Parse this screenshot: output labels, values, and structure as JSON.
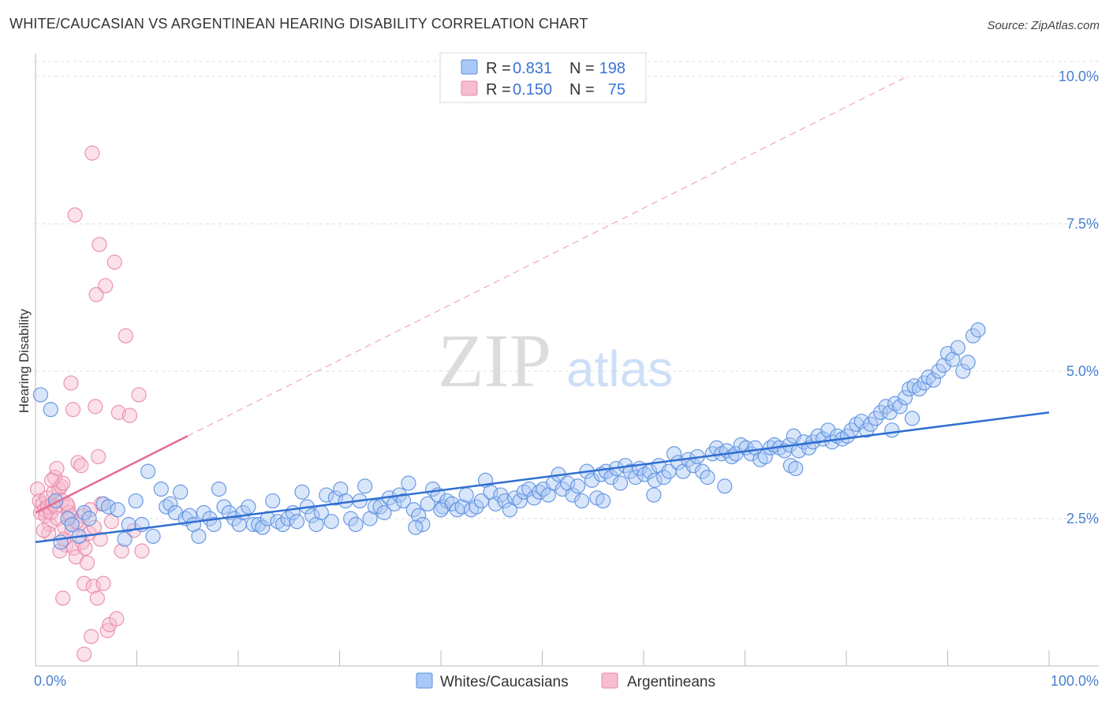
{
  "title": "WHITE/CAUCASIAN VS ARGENTINEAN HEARING DISABILITY CORRELATION CHART",
  "source": "Source: ZipAtlas.com",
  "watermark": {
    "zip": "ZIP",
    "atlas": "atlas"
  },
  "colors": {
    "blue": "#5b8fe0",
    "blue_fill": "#aac8f5",
    "blue_line": "#2f6fd0",
    "pink": "#e88aa8",
    "pink_fill": "#f6bcd0",
    "pink_line": "#e36b93",
    "tick_text": "#4a7fd0",
    "grid": "#dddddd"
  },
  "legend_top": [
    {
      "r_label": "R =",
      "r_value": "0.831",
      "n_label": "N =",
      "n_value": "198"
    },
    {
      "r_label": "R =",
      "r_value": "0.150",
      "n_label": "N =",
      "n_value": "75"
    }
  ],
  "chart_data": {
    "type": "scatter",
    "title": "WHITE/CAUCASIAN VS ARGENTINEAN HEARING DISABILITY CORRELATION CHART",
    "xlabel": "",
    "ylabel": "Hearing Disability",
    "xlim": [
      0,
      100
    ],
    "ylim": [
      0,
      10
    ],
    "x_tick_labels": [
      "0.0%",
      "100.0%"
    ],
    "y_ticks": [
      2.5,
      5.0,
      7.5,
      10.0
    ],
    "y_tick_labels": [
      "2.5%",
      "5.0%",
      "7.5%",
      "10.0%"
    ],
    "grid": true,
    "legend_position": "bottom",
    "series": [
      {
        "name": "Whites/Caucasians",
        "r": 0.831,
        "n": 198,
        "trend": {
          "x": [
            0,
            100
          ],
          "y": [
            2.1,
            4.3
          ]
        },
        "points": [
          [
            0.5,
            4.6
          ],
          [
            1.5,
            4.35
          ],
          [
            2,
            2.8
          ],
          [
            2.5,
            2.1
          ],
          [
            3.2,
            2.5
          ],
          [
            3.6,
            2.4
          ],
          [
            4.3,
            2.2
          ],
          [
            4.8,
            2.6
          ],
          [
            5.3,
            2.5
          ],
          [
            6.7,
            2.75
          ],
          [
            7.2,
            2.7
          ],
          [
            8.1,
            2.65
          ],
          [
            8.8,
            2.15
          ],
          [
            9.2,
            2.4
          ],
          [
            9.9,
            2.8
          ],
          [
            10.5,
            2.4
          ],
          [
            11.1,
            3.3
          ],
          [
            11.6,
            2.2
          ],
          [
            12.4,
            3.0
          ],
          [
            12.9,
            2.7
          ],
          [
            13.3,
            2.75
          ],
          [
            13.8,
            2.6
          ],
          [
            14.3,
            2.95
          ],
          [
            14.8,
            2.5
          ],
          [
            15.2,
            2.55
          ],
          [
            15.6,
            2.4
          ],
          [
            16.1,
            2.2
          ],
          [
            16.6,
            2.6
          ],
          [
            17.2,
            2.5
          ],
          [
            17.6,
            2.4
          ],
          [
            18.1,
            3.0
          ],
          [
            18.6,
            2.7
          ],
          [
            19.1,
            2.6
          ],
          [
            19.6,
            2.5
          ],
          [
            20.1,
            2.4
          ],
          [
            20.5,
            2.6
          ],
          [
            21.0,
            2.7
          ],
          [
            21.5,
            2.4
          ],
          [
            22.0,
            2.4
          ],
          [
            22.4,
            2.35
          ],
          [
            22.9,
            2.5
          ],
          [
            23.4,
            2.8
          ],
          [
            23.9,
            2.45
          ],
          [
            24.4,
            2.4
          ],
          [
            24.9,
            2.5
          ],
          [
            25.4,
            2.6
          ],
          [
            25.8,
            2.45
          ],
          [
            26.3,
            2.95
          ],
          [
            26.8,
            2.7
          ],
          [
            27.3,
            2.55
          ],
          [
            27.7,
            2.4
          ],
          [
            28.2,
            2.6
          ],
          [
            28.7,
            2.9
          ],
          [
            29.2,
            2.45
          ],
          [
            29.6,
            2.85
          ],
          [
            30.1,
            3.0
          ],
          [
            30.6,
            2.8
          ],
          [
            31.1,
            2.5
          ],
          [
            31.6,
            2.4
          ],
          [
            32.0,
            2.8
          ],
          [
            32.5,
            3.05
          ],
          [
            33.0,
            2.5
          ],
          [
            33.5,
            2.7
          ],
          [
            34.0,
            2.7
          ],
          [
            34.4,
            2.6
          ],
          [
            34.9,
            2.85
          ],
          [
            35.4,
            2.75
          ],
          [
            35.9,
            2.9
          ],
          [
            36.3,
            2.8
          ],
          [
            36.8,
            3.1
          ],
          [
            37.3,
            2.65
          ],
          [
            37.8,
            2.55
          ],
          [
            38.2,
            2.4
          ],
          [
            38.7,
            2.75
          ],
          [
            39.2,
            3.0
          ],
          [
            39.7,
            2.9
          ],
          [
            40.2,
            2.7
          ],
          [
            40.6,
            2.8
          ],
          [
            41.1,
            2.75
          ],
          [
            41.6,
            2.65
          ],
          [
            42.1,
            2.7
          ],
          [
            42.5,
            2.9
          ],
          [
            43.0,
            2.65
          ],
          [
            43.5,
            2.7
          ],
          [
            44.0,
            2.8
          ],
          [
            44.4,
            3.15
          ],
          [
            44.9,
            2.95
          ],
          [
            45.4,
            2.75
          ],
          [
            45.9,
            2.9
          ],
          [
            46.3,
            2.8
          ],
          [
            46.8,
            2.65
          ],
          [
            47.3,
            2.85
          ],
          [
            47.8,
            2.8
          ],
          [
            48.2,
            2.95
          ],
          [
            48.7,
            3.0
          ],
          [
            49.2,
            2.85
          ],
          [
            49.7,
            2.95
          ],
          [
            50.1,
            3.0
          ],
          [
            50.6,
            2.9
          ],
          [
            51.1,
            3.1
          ],
          [
            51.6,
            3.25
          ],
          [
            52.0,
            3.0
          ],
          [
            52.5,
            3.1
          ],
          [
            53.0,
            2.9
          ],
          [
            53.5,
            3.05
          ],
          [
            53.9,
            2.8
          ],
          [
            54.4,
            3.3
          ],
          [
            54.9,
            3.15
          ],
          [
            55.4,
            2.85
          ],
          [
            55.8,
            3.25
          ],
          [
            56.3,
            3.3
          ],
          [
            56.8,
            3.2
          ],
          [
            57.3,
            3.35
          ],
          [
            57.7,
            3.1
          ],
          [
            58.2,
            3.4
          ],
          [
            58.7,
            3.3
          ],
          [
            59.2,
            3.2
          ],
          [
            59.6,
            3.35
          ],
          [
            60.1,
            3.25
          ],
          [
            60.6,
            3.3
          ],
          [
            61.1,
            3.15
          ],
          [
            61.5,
            3.4
          ],
          [
            62.0,
            3.2
          ],
          [
            62.5,
            3.3
          ],
          [
            63.0,
            3.6
          ],
          [
            63.4,
            3.45
          ],
          [
            63.9,
            3.3
          ],
          [
            64.4,
            3.5
          ],
          [
            64.9,
            3.4
          ],
          [
            65.3,
            3.55
          ],
          [
            65.8,
            3.3
          ],
          [
            66.3,
            3.2
          ],
          [
            66.8,
            3.6
          ],
          [
            67.2,
            3.7
          ],
          [
            67.7,
            3.6
          ],
          [
            68.2,
            3.65
          ],
          [
            68.7,
            3.55
          ],
          [
            69.1,
            3.6
          ],
          [
            69.6,
            3.75
          ],
          [
            70.1,
            3.7
          ],
          [
            70.6,
            3.6
          ],
          [
            71.0,
            3.7
          ],
          [
            71.5,
            3.5
          ],
          [
            72.0,
            3.55
          ],
          [
            72.5,
            3.7
          ],
          [
            72.9,
            3.75
          ],
          [
            73.4,
            3.7
          ],
          [
            73.9,
            3.65
          ],
          [
            74.4,
            3.75
          ],
          [
            74.8,
            3.9
          ],
          [
            75.3,
            3.65
          ],
          [
            75.8,
            3.8
          ],
          [
            76.3,
            3.7
          ],
          [
            76.7,
            3.8
          ],
          [
            77.2,
            3.9
          ],
          [
            77.7,
            3.85
          ],
          [
            78.2,
            4.0
          ],
          [
            78.6,
            3.8
          ],
          [
            79.1,
            3.9
          ],
          [
            79.6,
            3.85
          ],
          [
            80.1,
            3.9
          ],
          [
            80.5,
            4.0
          ],
          [
            81.0,
            4.1
          ],
          [
            81.5,
            4.15
          ],
          [
            82.0,
            4.0
          ],
          [
            82.4,
            4.1
          ],
          [
            82.9,
            4.2
          ],
          [
            83.4,
            4.3
          ],
          [
            83.9,
            4.4
          ],
          [
            84.3,
            4.3
          ],
          [
            84.8,
            4.45
          ],
          [
            85.3,
            4.4
          ],
          [
            85.8,
            4.55
          ],
          [
            86.2,
            4.7
          ],
          [
            86.7,
            4.75
          ],
          [
            87.2,
            4.7
          ],
          [
            87.7,
            4.8
          ],
          [
            88.1,
            4.9
          ],
          [
            88.6,
            4.85
          ],
          [
            89.1,
            5.0
          ],
          [
            89.6,
            5.1
          ],
          [
            90.0,
            5.3
          ],
          [
            90.5,
            5.2
          ],
          [
            91.0,
            5.4
          ],
          [
            91.5,
            5.0
          ],
          [
            92.0,
            5.15
          ],
          [
            92.5,
            5.6
          ],
          [
            93.0,
            5.7
          ],
          [
            37.5,
            2.35
          ],
          [
            40.0,
            2.65
          ],
          [
            56.0,
            2.8
          ],
          [
            61.0,
            2.9
          ],
          [
            68.0,
            3.05
          ],
          [
            74.5,
            3.4
          ],
          [
            84.5,
            4.0
          ],
          [
            86.5,
            4.2
          ],
          [
            75.0,
            3.35
          ]
        ]
      },
      {
        "name": "Argentineans",
        "r": 0.15,
        "n": 75,
        "trend": {
          "x": [
            0,
            15
          ],
          "y": [
            2.6,
            3.9
          ]
        },
        "trend_extension": {
          "x": [
            15,
            86
          ],
          "y": [
            3.9,
            10.0
          ]
        },
        "points": [
          [
            0.2,
            3.0
          ],
          [
            0.4,
            2.8
          ],
          [
            0.5,
            2.6
          ],
          [
            0.7,
            2.75
          ],
          [
            0.9,
            2.65
          ],
          [
            1.0,
            2.55
          ],
          [
            1.1,
            2.85
          ],
          [
            1.2,
            2.7
          ],
          [
            1.4,
            2.4
          ],
          [
            1.5,
            2.6
          ],
          [
            1.7,
            2.75
          ],
          [
            1.8,
            2.95
          ],
          [
            1.9,
            3.2
          ],
          [
            2.0,
            2.7
          ],
          [
            2.1,
            3.35
          ],
          [
            2.2,
            2.5
          ],
          [
            2.3,
            3.0
          ],
          [
            2.5,
            3.05
          ],
          [
            2.6,
            2.8
          ],
          [
            2.7,
            3.1
          ],
          [
            2.9,
            2.35
          ],
          [
            3.0,
            2.05
          ],
          [
            3.2,
            2.7
          ],
          [
            3.4,
            2.55
          ],
          [
            3.5,
            4.8
          ],
          [
            3.6,
            2.3
          ],
          [
            3.7,
            4.35
          ],
          [
            3.8,
            2.0
          ],
          [
            3.9,
            7.65
          ],
          [
            4.0,
            1.85
          ],
          [
            4.2,
            3.45
          ],
          [
            4.3,
            2.4
          ],
          [
            4.5,
            3.4
          ],
          [
            4.6,
            2.1
          ],
          [
            4.7,
            2.55
          ],
          [
            4.8,
            1.4
          ],
          [
            4.9,
            2.0
          ],
          [
            5.1,
            1.75
          ],
          [
            5.3,
            2.25
          ],
          [
            5.5,
            0.5
          ],
          [
            5.6,
            8.7
          ],
          [
            5.7,
            1.35
          ],
          [
            5.8,
            2.35
          ],
          [
            5.9,
            4.4
          ],
          [
            6.0,
            6.3
          ],
          [
            6.1,
            1.15
          ],
          [
            6.2,
            3.55
          ],
          [
            6.3,
            7.15
          ],
          [
            6.5,
            2.75
          ],
          [
            6.7,
            1.4
          ],
          [
            6.9,
            6.45
          ],
          [
            7.1,
            0.6
          ],
          [
            7.3,
            0.7
          ],
          [
            7.5,
            2.45
          ],
          [
            7.8,
            6.85
          ],
          [
            8.0,
            0.8
          ],
          [
            8.2,
            4.3
          ],
          [
            8.5,
            1.95
          ],
          [
            8.9,
            5.6
          ],
          [
            9.3,
            4.25
          ],
          [
            9.7,
            2.3
          ],
          [
            10.2,
            4.6
          ],
          [
            10.5,
            1.95
          ],
          [
            1.3,
            2.25
          ],
          [
            2.4,
            1.95
          ],
          [
            2.8,
            2.15
          ],
          [
            3.3,
            2.6
          ],
          [
            4.1,
            2.45
          ],
          [
            0.8,
            2.3
          ],
          [
            1.6,
            3.15
          ],
          [
            2.7,
            1.15
          ],
          [
            4.8,
            0.2
          ],
          [
            6.4,
            2.15
          ],
          [
            3.1,
            2.75
          ],
          [
            5.4,
            2.65
          ]
        ]
      }
    ]
  }
}
